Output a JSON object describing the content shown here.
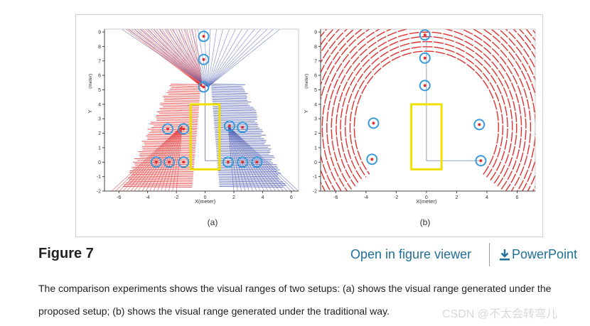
{
  "figure": {
    "panels": [
      {
        "id": "a",
        "sublabel": "(a)",
        "x_ticks": [
          "-6",
          "-4",
          "-2",
          "0",
          "2",
          "4",
          "6"
        ],
        "y_ticks": [
          "9",
          "8",
          "7",
          "6",
          "5",
          "4",
          "3",
          "2",
          "1",
          "0",
          "-1",
          "-2"
        ],
        "xlabel": "X(meter)",
        "ylabel_main": "Y",
        "ylabel_unit": "(meter)"
      },
      {
        "id": "b",
        "sublabel": "(b)",
        "x_ticks": [
          "-6",
          "-4",
          "-2",
          "0",
          "2",
          "4",
          "6"
        ],
        "y_ticks": [
          "9",
          "8",
          "7",
          "6",
          "5",
          "4",
          "3",
          "2",
          "1",
          "0",
          "-1",
          "-2"
        ],
        "xlabel": "X(meter)",
        "ylabel_main": "Y",
        "ylabel_unit": "(meter)"
      }
    ],
    "colors": {
      "red_scan": "#e03030",
      "blue_scan": "#4a58b0",
      "sensor_box": "#f0e000",
      "marker": "#3a9ad9"
    }
  },
  "caption_block": {
    "title": "Figure 7",
    "open_viewer": "Open in figure viewer",
    "powerpoint": "PowerPoint",
    "powerpoint_icon": "download-icon",
    "caption": "The comparison experiments shows the visual ranges of two setups: (a) shows the visual range generated under the proposed setup; (b) shows the visual range generated under the traditional way."
  },
  "watermark": "CSDN @不太会转弯儿"
}
